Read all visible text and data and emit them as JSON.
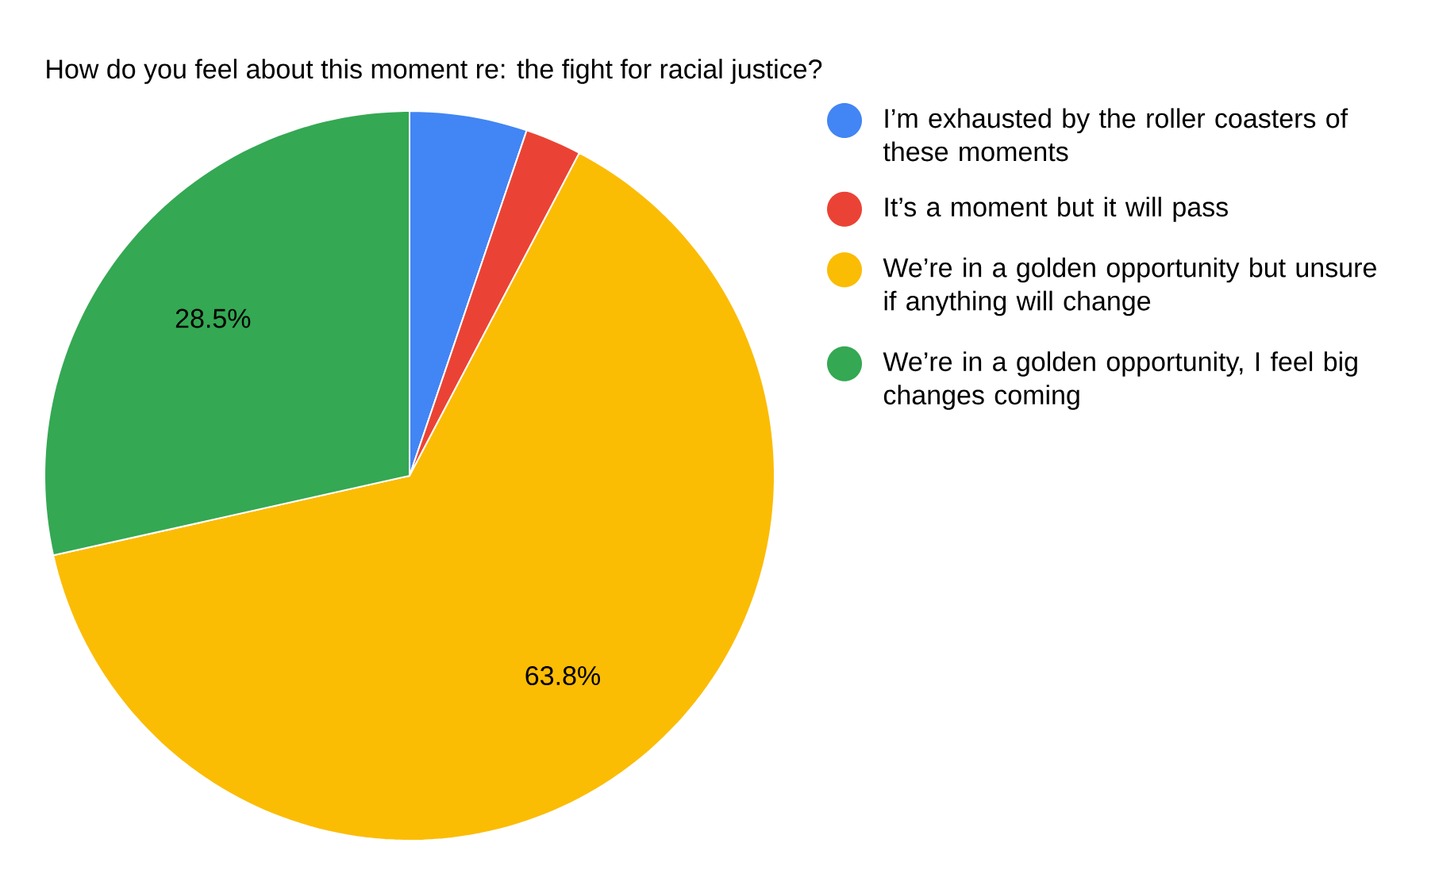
{
  "chart_data": {
    "type": "pie",
    "title": "How do you feel about this moment re: the fight for racial justice?",
    "categories": [
      "I’m exhausted by the roller coasters of these moments",
      "It’s a moment but it will pass",
      "We’re in a golden opportunity but unsure if anything will change",
      "We’re in a golden opportunity, I feel big changes coming"
    ],
    "values": [
      5.2,
      2.5,
      63.8,
      28.5
    ],
    "colors": [
      "#4285f4",
      "#ea4335",
      "#fbbc04",
      "#34a853"
    ],
    "value_labels": [
      null,
      null,
      "63.8%",
      "28.5%"
    ],
    "legend": "right"
  }
}
